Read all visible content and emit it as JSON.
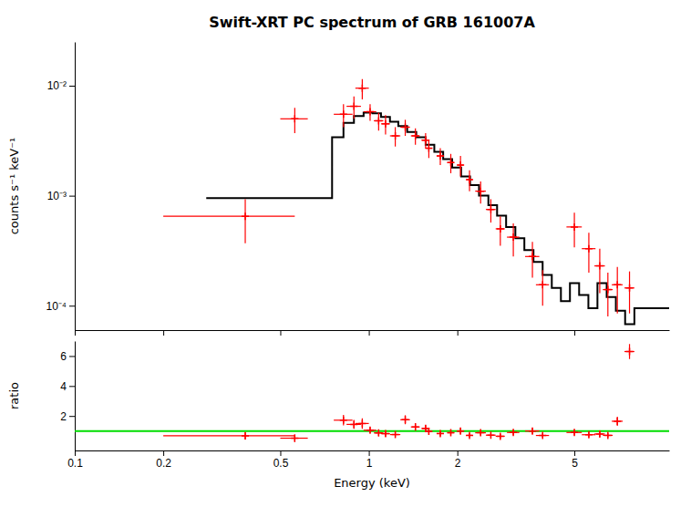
{
  "chart_data": [
    {
      "type": "line",
      "title": "Swift-XRT PC spectrum of GRB 161007A",
      "ylabel": "counts s⁻¹ keV⁻¹",
      "log": true,
      "grid": false,
      "tick_labels": "y",
      "xlim": [
        0.1,
        10.5
      ],
      "xticks": [
        0.1,
        0.2,
        0.5,
        1,
        2,
        5
      ],
      "ylim": [
        6e-05,
        0.025
      ],
      "yticks": [
        {
          "value": 0.0001,
          "label": "10⁻⁴"
        },
        {
          "value": 0.001,
          "label": "10⁻³"
        },
        {
          "value": 0.01,
          "label": "10⁻²"
        }
      ],
      "series": [
        {
          "type": "line",
          "color": "#000000",
          "x": [
            0.28,
            0.6,
            0.6,
            0.75,
            0.75,
            0.82,
            0.82,
            0.89,
            0.89,
            0.96,
            0.96,
            1.03,
            1.03,
            1.1,
            1.1,
            1.18,
            1.18,
            1.26,
            1.26,
            1.35,
            1.35,
            1.45,
            1.45,
            1.56,
            1.56,
            1.67,
            1.67,
            1.79,
            1.79,
            1.92,
            1.92,
            2.06,
            2.06,
            2.21,
            2.21,
            2.37,
            2.37,
            2.55,
            2.55,
            2.73,
            2.73,
            2.93,
            2.93,
            3.15,
            3.15,
            3.38,
            3.38,
            3.63,
            3.63,
            3.9,
            3.9,
            4.19,
            4.19,
            4.5,
            4.5,
            4.83,
            4.83,
            5.19,
            5.19,
            5.58,
            5.58,
            5.99,
            5.99,
            6.44,
            6.44,
            6.92,
            6.92,
            7.44,
            7.44,
            8.0,
            8.0,
            10.5
          ],
          "values": [
            0.00095,
            0.00095,
            0.00095,
            0.00095,
            0.0034,
            0.0034,
            0.0046,
            0.0046,
            0.0053,
            0.0053,
            0.0057,
            0.0057,
            0.0056,
            0.0056,
            0.0052,
            0.0052,
            0.0047,
            0.0047,
            0.0043,
            0.0043,
            0.0038,
            0.0038,
            0.0034,
            0.0034,
            0.0029,
            0.0029,
            0.0025,
            0.0025,
            0.00215,
            0.00215,
            0.0018,
            0.0018,
            0.0015,
            0.0015,
            0.00125,
            0.00125,
            0.001,
            0.001,
            0.00082,
            0.00082,
            0.00066,
            0.00066,
            0.00052,
            0.00052,
            0.00041,
            0.00041,
            0.00032,
            0.00032,
            0.00025,
            0.00025,
            0.00019,
            0.00019,
            0.000145,
            0.000145,
            0.00011,
            0.00011,
            0.00016,
            0.00016,
            0.000125,
            0.000125,
            9.5e-05,
            9.5e-05,
            0.00016,
            0.00016,
            0.00012,
            0.00012,
            9e-05,
            9e-05,
            6.8e-05,
            6.8e-05,
            9.5e-05,
            9.5e-05
          ]
        },
        {
          "type": "scatter",
          "color": "#ff0000",
          "marker": "plus",
          "x": [
            0.38,
            0.56,
            0.82,
            0.89,
            0.95,
            1.01,
            1.08,
            1.14,
            1.23,
            1.33,
            1.44,
            1.56,
            1.6,
            1.75,
            1.9,
            2.05,
            2.2,
            2.4,
            2.6,
            2.8,
            3.1,
            3.6,
            3.9,
            5.0,
            5.6,
            6.1,
            6.5,
            7.0,
            7.7
          ],
          "x_err": [
            0.18,
            0.06,
            0.06,
            0.05,
            0.05,
            0.05,
            0.04,
            0.04,
            0.05,
            0.05,
            0.05,
            0.05,
            0.04,
            0.05,
            0.05,
            0.05,
            0.05,
            0.1,
            0.1,
            0.1,
            0.15,
            0.2,
            0.2,
            0.3,
            0.3,
            0.25,
            0.25,
            0.3,
            0.3
          ],
          "values": [
            0.00065,
            0.005,
            0.0055,
            0.0065,
            0.0095,
            0.0058,
            0.0048,
            0.0045,
            0.0035,
            0.0042,
            0.0035,
            0.0032,
            0.0027,
            0.0023,
            0.002,
            0.0019,
            0.0014,
            0.0011,
            0.00075,
            0.0005,
            0.00042,
            0.00028,
            0.000155,
            0.00052,
            0.00033,
            0.00023,
            0.00014,
            0.000155,
            0.000145
          ],
          "y_err_lo": [
            0.00028,
            0.0013,
            0.0013,
            0.0015,
            0.002,
            0.001,
            0.0009,
            0.0009,
            0.0007,
            0.0007,
            0.0006,
            0.0005,
            0.0005,
            0.0004,
            0.0004,
            0.0004,
            0.0003,
            0.00025,
            0.00018,
            0.00015,
            0.00014,
            0.0001,
            5.5e-05,
            0.00018,
            0.00013,
            0.0001,
            6e-05,
            7e-05,
            6e-05
          ],
          "y_err_hi": [
            0.00028,
            0.0013,
            0.0013,
            0.0015,
            0.002,
            0.001,
            0.0009,
            0.0009,
            0.0007,
            0.0007,
            0.0006,
            0.0005,
            0.0005,
            0.0004,
            0.0004,
            0.0004,
            0.0003,
            0.00025,
            0.00018,
            0.00015,
            0.00014,
            0.0001,
            5.5e-05,
            0.00018,
            0.00013,
            0.0001,
            6e-05,
            7e-05,
            6e-05
          ]
        }
      ]
    },
    {
      "type": "scatter",
      "xlabel": "Energy (keV)",
      "ylabel": "ratio",
      "log": "x",
      "grid": false,
      "xlim": [
        0.1,
        10.5
      ],
      "xticks": [
        0.1,
        0.2,
        0.5,
        1,
        2,
        5
      ],
      "ylim": [
        -0.3,
        7.0
      ],
      "yticks": [
        2,
        4,
        6
      ],
      "series": [
        {
          "type": "hline",
          "color": "#00dd00",
          "values": [
            1.0
          ]
        },
        {
          "type": "scatter",
          "color": "#ff0000",
          "marker": "plus",
          "x": [
            0.38,
            0.56,
            0.82,
            0.89,
            0.95,
            1.01,
            1.08,
            1.14,
            1.23,
            1.33,
            1.44,
            1.56,
            1.6,
            1.75,
            1.9,
            2.05,
            2.2,
            2.4,
            2.6,
            2.8,
            3.1,
            3.6,
            3.9,
            5.0,
            5.6,
            6.1,
            6.5,
            7.0,
            7.7
          ],
          "x_err": [
            0.18,
            0.06,
            0.06,
            0.05,
            0.05,
            0.05,
            0.04,
            0.04,
            0.05,
            0.05,
            0.05,
            0.05,
            0.04,
            0.05,
            0.05,
            0.05,
            0.05,
            0.1,
            0.1,
            0.1,
            0.15,
            0.2,
            0.2,
            0.3,
            0.3,
            0.25,
            0.25,
            0.3,
            0.3
          ],
          "values": [
            0.68,
            0.52,
            1.72,
            1.44,
            1.5,
            1.05,
            0.87,
            0.82,
            0.76,
            1.75,
            1.27,
            1.17,
            0.97,
            0.83,
            0.88,
            1.0,
            0.71,
            0.88,
            0.72,
            0.65,
            0.9,
            1.0,
            0.7,
            0.9,
            0.75,
            0.8,
            0.71,
            1.65,
            6.3
          ],
          "y_err_lo": [
            0.25,
            0.25,
            0.35,
            0.3,
            0.35,
            0.2,
            0.2,
            0.2,
            0.18,
            0.3,
            0.25,
            0.22,
            0.2,
            0.18,
            0.18,
            0.2,
            0.15,
            0.18,
            0.15,
            0.15,
            0.18,
            0.2,
            0.15,
            0.2,
            0.18,
            0.18,
            0.15,
            0.3,
            0.5
          ],
          "y_err_hi": [
            0.25,
            0.25,
            0.35,
            0.3,
            0.35,
            0.2,
            0.2,
            0.2,
            0.18,
            0.3,
            0.25,
            0.22,
            0.2,
            0.18,
            0.18,
            0.2,
            0.15,
            0.18,
            0.15,
            0.15,
            0.18,
            0.2,
            0.15,
            0.2,
            0.18,
            0.18,
            0.15,
            0.3,
            0.5
          ]
        }
      ]
    }
  ]
}
